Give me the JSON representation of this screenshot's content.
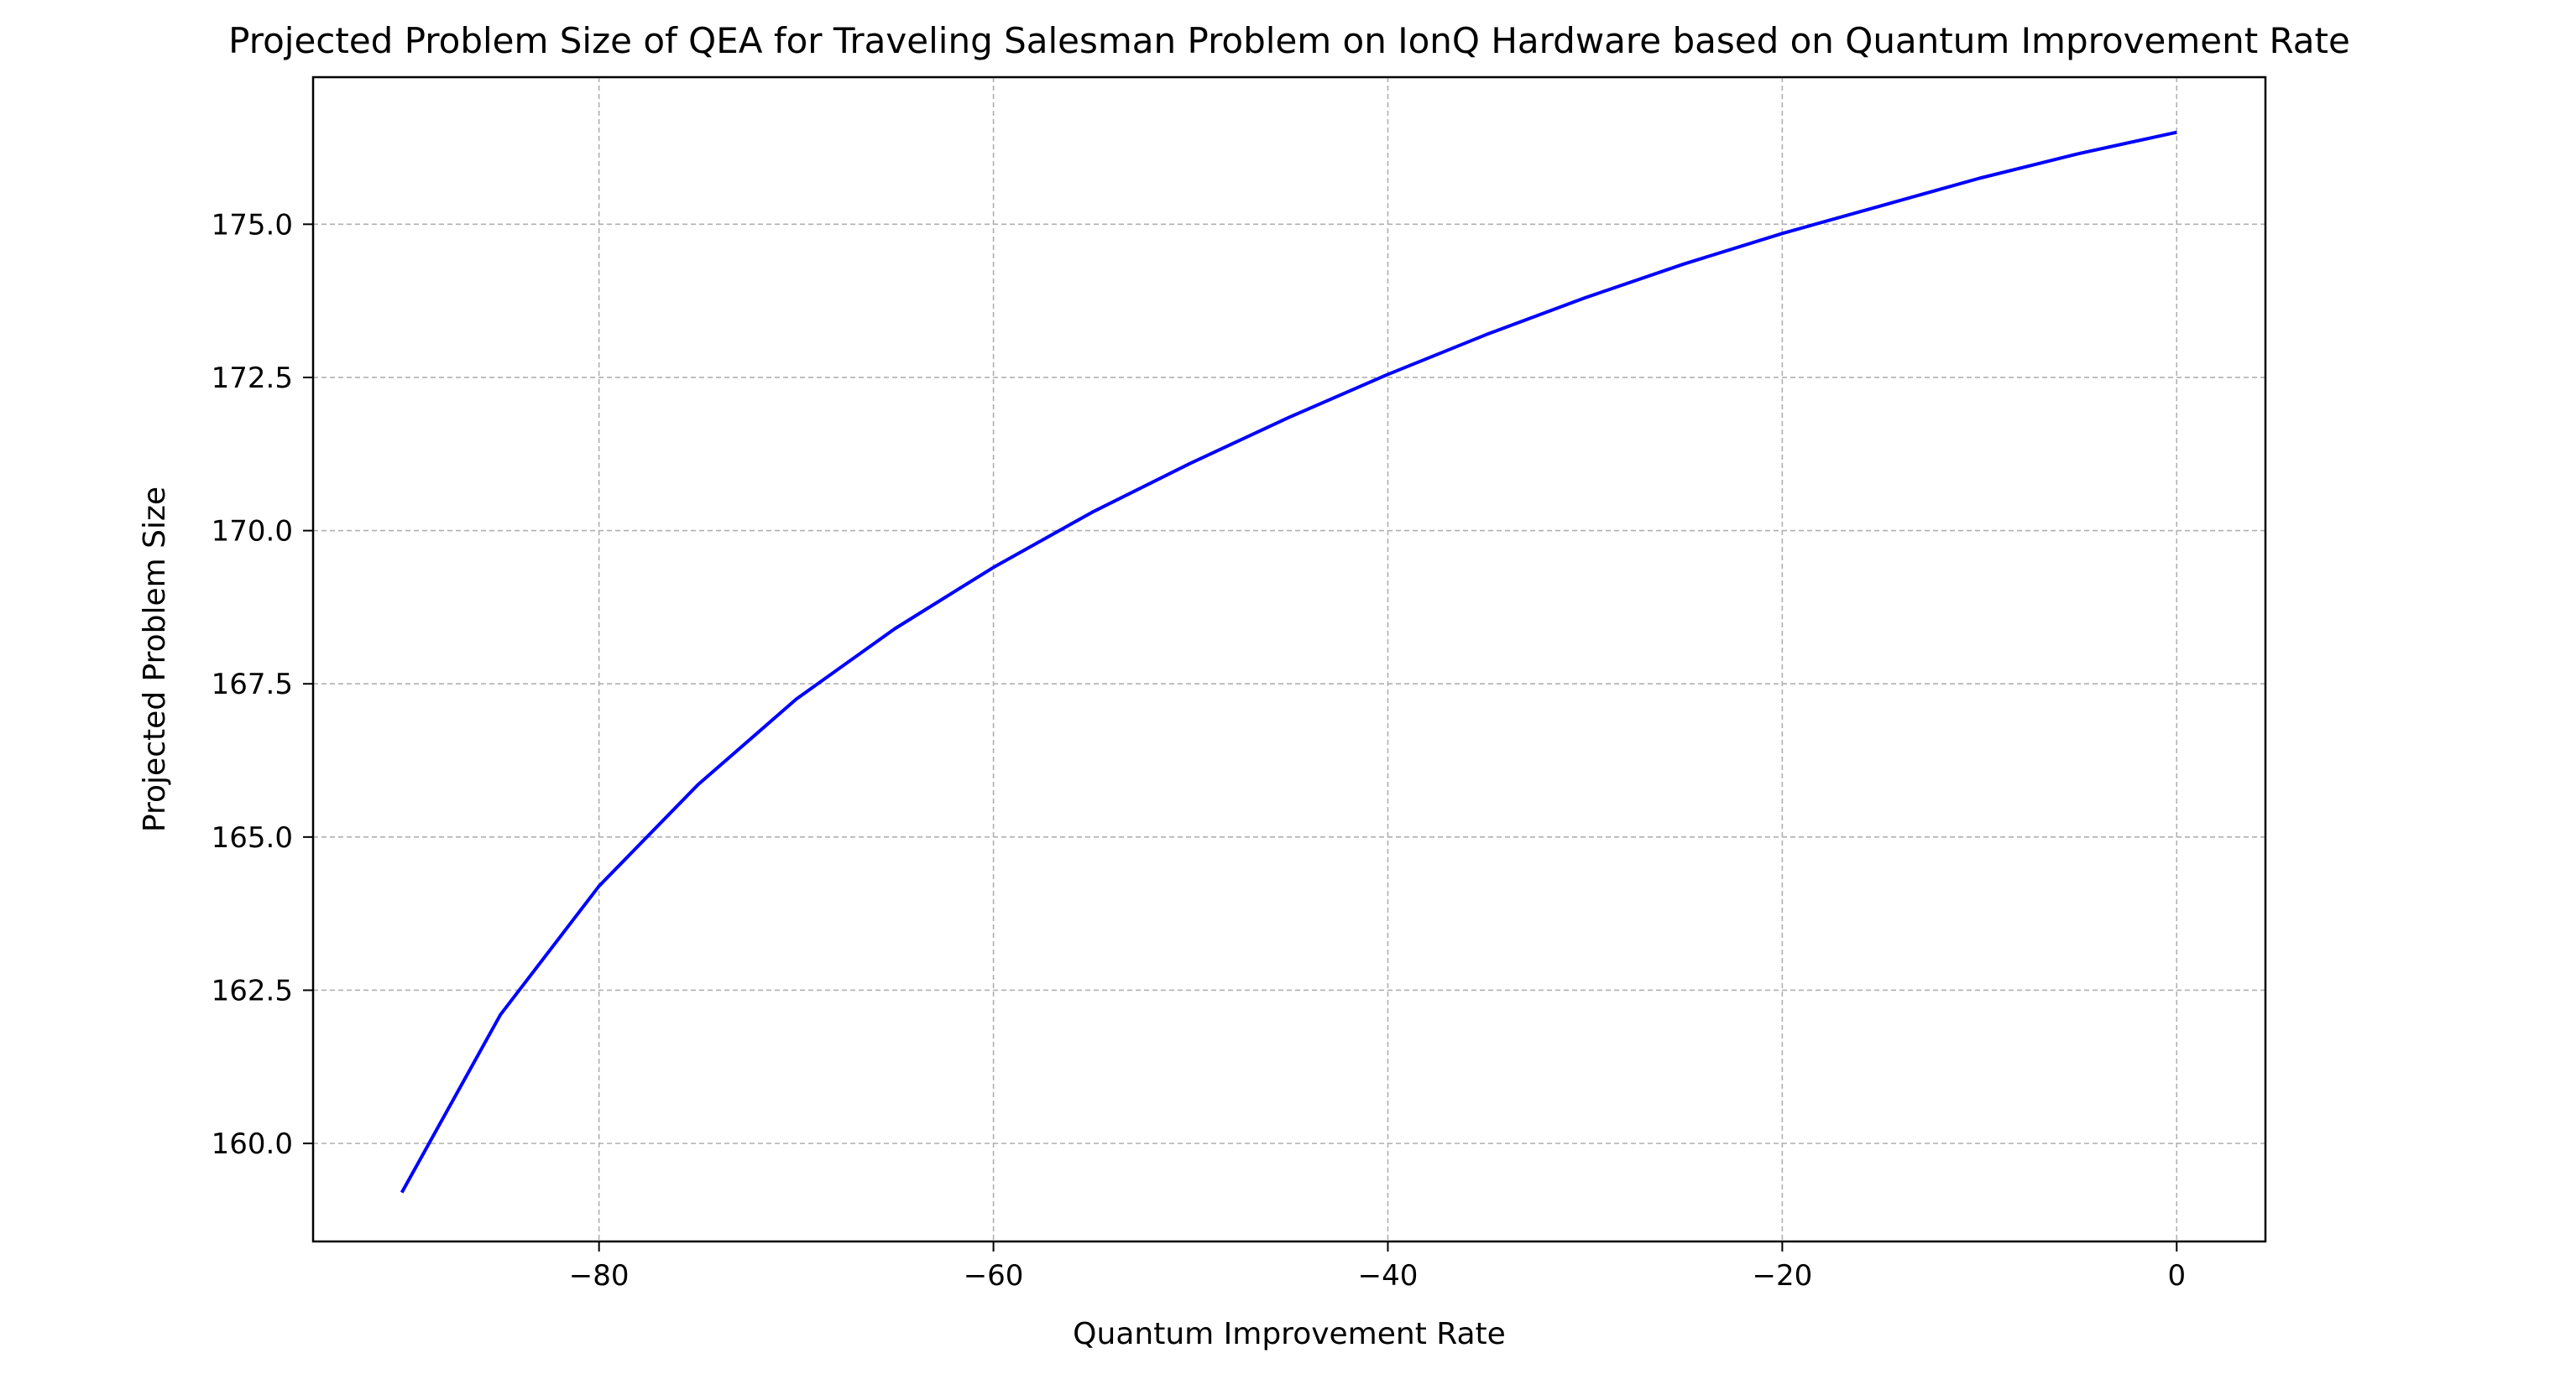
{
  "chart_data": {
    "type": "line",
    "title": "Projected Problem Size of QEA for Traveling Salesman Problem on IonQ Hardware based on Quantum Improvement Rate",
    "xlabel": "Quantum Improvement Rate",
    "ylabel": "Projected Problem Size",
    "xlim": [
      -94.5,
      4.5
    ],
    "ylim": [
      158.4,
      177.4
    ],
    "xticks": [
      -80,
      -60,
      -40,
      -20,
      0
    ],
    "xtick_labels": [
      "−80",
      "−60",
      "−40",
      "−20",
      "0"
    ],
    "yticks": [
      160.0,
      162.5,
      165.0,
      167.5,
      170.0,
      172.5,
      175.0
    ],
    "ytick_labels": [
      "160.0",
      "162.5",
      "165.0",
      "167.5",
      "170.0",
      "172.5",
      "175.0"
    ],
    "grid": true,
    "legend": false,
    "series": [
      {
        "color": "#0000ff",
        "x": [
          -90,
          -85,
          -80,
          -75,
          -70,
          -65,
          -60,
          -55,
          -50,
          -45,
          -40,
          -35,
          -30,
          -25,
          -20,
          -15,
          -10,
          -5,
          0
        ],
        "y": [
          159.2,
          162.1,
          164.2,
          165.85,
          167.25,
          168.4,
          169.4,
          170.3,
          171.1,
          171.85,
          172.55,
          173.2,
          173.8,
          174.35,
          174.85,
          175.3,
          175.75,
          176.15,
          176.5
        ]
      }
    ]
  }
}
